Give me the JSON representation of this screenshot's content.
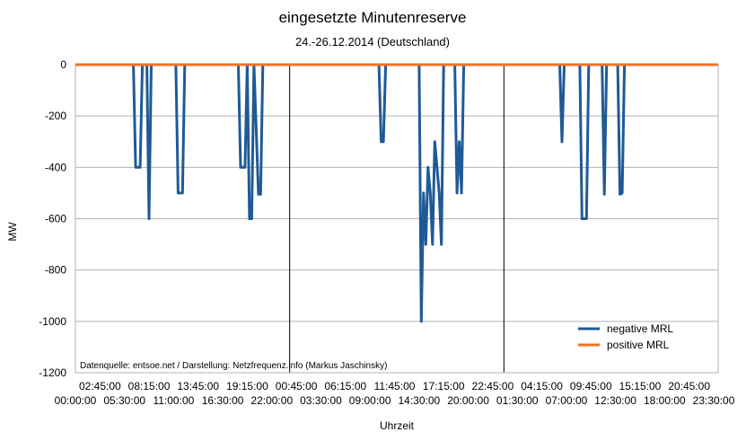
{
  "chart_data": {
    "type": "line",
    "title": "eingesetzte Minutenreserve",
    "subtitle": "24.-26.12.2014  (Deutschland)",
    "xlabel": "Uhrzeit",
    "ylabel": "MW",
    "ylim": [
      -1200,
      0
    ],
    "y_ticks": [
      0,
      -200,
      -400,
      -600,
      -800,
      -1000,
      -1200
    ],
    "x_ticks_top": [
      "02:45:00",
      "08:15:00",
      "13:45:00",
      "19:15:00",
      "00:45:00",
      "06:15:00",
      "11:45:00",
      "17:15:00",
      "22:45:00",
      "04:15:00",
      "09:45:00",
      "15:15:00",
      "20:45:00"
    ],
    "x_ticks_bottom": [
      "00:00:00",
      "05:30:00",
      "11:00:00",
      "16:30:00",
      "22:00:00",
      "03:30:00",
      "09:00:00",
      "14:30:00",
      "20:00:00",
      "01:30:00",
      "07:00:00",
      "12:30:00",
      "18:00:00",
      "23:30:00"
    ],
    "day_separators_hours": [
      24,
      48
    ],
    "x_range_hours": [
      0,
      72
    ],
    "grid": "horizontal",
    "legend_position": "bottom-right",
    "annotation": "Datenquelle: entsoe.net / Darstellung: Netzfrequenz.info (Markus Jaschinsky)",
    "series": [
      {
        "name": "negative MRL",
        "color": "#1f5a96",
        "points": [
          [
            0,
            0
          ],
          [
            6.5,
            0
          ],
          [
            6.75,
            -400
          ],
          [
            7.0,
            -400
          ],
          [
            7.25,
            -400
          ],
          [
            7.5,
            0
          ],
          [
            8.0,
            0
          ],
          [
            8.25,
            -600
          ],
          [
            8.5,
            0
          ],
          [
            11.25,
            0
          ],
          [
            11.5,
            -500
          ],
          [
            11.75,
            -500
          ],
          [
            12.0,
            -500
          ],
          [
            12.25,
            0
          ],
          [
            18.25,
            0
          ],
          [
            18.5,
            -400
          ],
          [
            18.75,
            -400
          ],
          [
            19.0,
            -400
          ],
          [
            19.25,
            0
          ],
          [
            19.5,
            -600
          ],
          [
            19.75,
            -600
          ],
          [
            20.0,
            0
          ],
          [
            20.5,
            -505
          ],
          [
            20.75,
            -505
          ],
          [
            21.0,
            0
          ],
          [
            34.0,
            0
          ],
          [
            34.25,
            -300
          ],
          [
            34.5,
            -300
          ],
          [
            34.75,
            0
          ],
          [
            38.5,
            0
          ],
          [
            38.75,
            -1000
          ],
          [
            39.0,
            -500
          ],
          [
            39.25,
            -700
          ],
          [
            39.5,
            -400
          ],
          [
            39.75,
            -500
          ],
          [
            40.0,
            -700
          ],
          [
            40.25,
            -300
          ],
          [
            40.5,
            -400
          ],
          [
            40.75,
            -500
          ],
          [
            41.0,
            -700
          ],
          [
            41.25,
            0
          ],
          [
            42.5,
            0
          ],
          [
            42.75,
            -500
          ],
          [
            43.0,
            -300
          ],
          [
            43.25,
            -500
          ],
          [
            43.5,
            0
          ],
          [
            54.25,
            0
          ],
          [
            54.5,
            -300
          ],
          [
            54.75,
            0
          ],
          [
            56.5,
            0
          ],
          [
            56.75,
            -600
          ],
          [
            57.0,
            -600
          ],
          [
            57.25,
            -600
          ],
          [
            57.5,
            0
          ],
          [
            59.0,
            0
          ],
          [
            59.25,
            -505
          ],
          [
            59.5,
            0
          ],
          [
            60.75,
            0
          ],
          [
            61.0,
            -505
          ],
          [
            61.25,
            -500
          ],
          [
            61.5,
            0
          ],
          [
            72,
            0
          ]
        ]
      },
      {
        "name": "positive MRL",
        "color": "#f07226",
        "points": [
          [
            0,
            0
          ],
          [
            72,
            0
          ]
        ]
      }
    ]
  }
}
